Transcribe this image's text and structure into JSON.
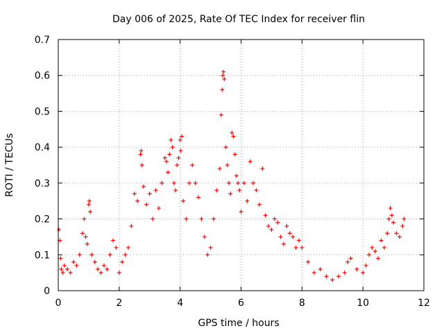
{
  "chart_data": {
    "type": "scatter",
    "title": "Day 006 of 2025, Rate Of TEC Index for receiver flin",
    "xlabel": "GPS time / hours",
    "ylabel": "ROTI / TECUs",
    "xlim": [
      0,
      12
    ],
    "ylim": [
      0,
      0.7
    ],
    "xticks": [
      "0",
      "2",
      "4",
      "6",
      "8",
      "10",
      "12"
    ],
    "yticks": [
      "0",
      "0.1",
      "0.2",
      "0.3",
      "0.4",
      "0.5",
      "0.6",
      "0.7"
    ],
    "grid": true,
    "marker": "+",
    "color": "#ff0000",
    "series": [
      {
        "name": "ROTI",
        "x": [
          0.02,
          0.05,
          0.08,
          0.1,
          0.15,
          0.2,
          0.3,
          0.4,
          0.5,
          0.6,
          0.7,
          0.8,
          0.85,
          0.9,
          0.95,
          1.0,
          1.02,
          1.05,
          1.1,
          1.2,
          1.3,
          1.4,
          1.5,
          1.6,
          1.7,
          1.8,
          1.9,
          2.0,
          2.1,
          2.2,
          2.3,
          2.4,
          2.5,
          2.6,
          2.7,
          2.72,
          2.75,
          2.8,
          2.9,
          3.0,
          3.1,
          3.2,
          3.3,
          3.4,
          3.5,
          3.55,
          3.6,
          3.65,
          3.7,
          3.75,
          3.8,
          3.85,
          3.9,
          3.95,
          4.0,
          4.02,
          4.05,
          4.1,
          4.2,
          4.3,
          4.4,
          4.5,
          4.6,
          4.7,
          4.8,
          4.9,
          5.0,
          5.1,
          5.2,
          5.3,
          5.35,
          5.38,
          5.4,
          5.42,
          5.45,
          5.5,
          5.55,
          5.6,
          5.65,
          5.7,
          5.75,
          5.8,
          5.85,
          5.9,
          5.95,
          6.0,
          6.1,
          6.2,
          6.3,
          6.4,
          6.5,
          6.6,
          6.7,
          6.8,
          6.9,
          7.0,
          7.1,
          7.2,
          7.3,
          7.4,
          7.5,
          7.6,
          7.7,
          7.8,
          7.9,
          8.0,
          8.2,
          8.4,
          8.6,
          8.8,
          9.0,
          9.2,
          9.4,
          9.5,
          9.6,
          9.8,
          10.0,
          10.1,
          10.2,
          10.3,
          10.4,
          10.5,
          10.6,
          10.7,
          10.8,
          10.85,
          10.9,
          10.95,
          11.0,
          11.1,
          11.2,
          11.3,
          11.35
        ],
        "y": [
          0.17,
          0.14,
          0.09,
          0.06,
          0.05,
          0.07,
          0.06,
          0.05,
          0.08,
          0.07,
          0.1,
          0.16,
          0.2,
          0.15,
          0.13,
          0.24,
          0.25,
          0.22,
          0.1,
          0.08,
          0.06,
          0.05,
          0.07,
          0.06,
          0.1,
          0.14,
          0.12,
          0.05,
          0.08,
          0.1,
          0.12,
          0.18,
          0.27,
          0.25,
          0.38,
          0.39,
          0.35,
          0.29,
          0.24,
          0.27,
          0.2,
          0.28,
          0.23,
          0.3,
          0.37,
          0.36,
          0.33,
          0.38,
          0.42,
          0.4,
          0.3,
          0.28,
          0.35,
          0.37,
          0.42,
          0.39,
          0.43,
          0.25,
          0.2,
          0.3,
          0.35,
          0.3,
          0.26,
          0.2,
          0.15,
          0.1,
          0.12,
          0.2,
          0.28,
          0.34,
          0.49,
          0.56,
          0.6,
          0.61,
          0.59,
          0.4,
          0.35,
          0.3,
          0.27,
          0.44,
          0.43,
          0.38,
          0.32,
          0.3,
          0.28,
          0.22,
          0.3,
          0.25,
          0.36,
          0.3,
          0.28,
          0.24,
          0.34,
          0.21,
          0.18,
          0.17,
          0.2,
          0.19,
          0.15,
          0.13,
          0.18,
          0.16,
          0.15,
          0.12,
          0.14,
          0.12,
          0.08,
          0.05,
          0.06,
          0.04,
          0.03,
          0.04,
          0.05,
          0.08,
          0.09,
          0.06,
          0.05,
          0.07,
          0.1,
          0.12,
          0.11,
          0.09,
          0.14,
          0.12,
          0.16,
          0.2,
          0.23,
          0.21,
          0.19,
          0.16,
          0.15,
          0.18,
          0.2
        ]
      }
    ]
  }
}
